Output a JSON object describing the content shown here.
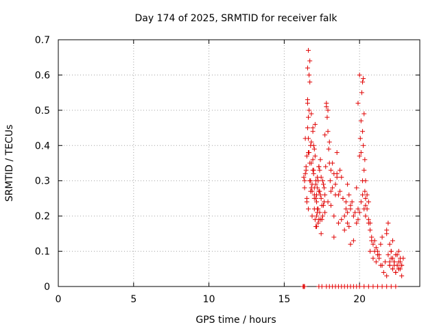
{
  "chart_data": {
    "type": "scatter",
    "title": "Day 174 of 2025, SRMTID for receiver falk",
    "xlabel": "GPS time / hours",
    "ylabel": "SRMTID / TECUs",
    "xlim": [
      0,
      24
    ],
    "ylim": [
      0,
      0.7
    ],
    "xticks": [
      0,
      5,
      10,
      15,
      20
    ],
    "yticks": [
      0,
      0.1,
      0.2,
      0.3,
      0.4,
      0.5,
      0.6,
      0.7
    ],
    "xtick_labels": [
      "0",
      "5",
      "10",
      "15",
      "20"
    ],
    "ytick_labels": [
      "0",
      "0.1",
      "0.2",
      "0.3",
      "0.4",
      "0.5",
      "0.6",
      "0.7"
    ],
    "grid": true,
    "marker": "+",
    "color": "#e00000",
    "series": [
      {
        "name": "SRMTID",
        "x": [
          16.3,
          16.35,
          16.4,
          16.45,
          16.5,
          16.55,
          16.6,
          16.6,
          16.65,
          16.7,
          16.75,
          16.8,
          16.85,
          16.9,
          16.95,
          17.0,
          17.05,
          17.1,
          17.15,
          17.2,
          17.25,
          17.3,
          17.35,
          17.4,
          17.45,
          17.5,
          17.55,
          17.6,
          17.65,
          17.7,
          16.35,
          16.45,
          16.55,
          16.65,
          16.75,
          16.85,
          16.95,
          17.05,
          17.15,
          17.25,
          17.35,
          17.45,
          17.55,
          17.65,
          17.75,
          16.4,
          16.5,
          16.6,
          16.7,
          16.8,
          16.9,
          17.0,
          17.1,
          17.2,
          17.3,
          17.4,
          16.5,
          16.6,
          16.7,
          16.8,
          16.9,
          17.0,
          17.1,
          17.2,
          17.3,
          16.55,
          16.55,
          16.6,
          16.65,
          16.7,
          16.75,
          16.8,
          16.85,
          16.9,
          16.95,
          17.0,
          17.0,
          17.05,
          17.1,
          17.15,
          17.15,
          17.2,
          17.25,
          17.3,
          17.35,
          17.4,
          17.45,
          17.5,
          17.6,
          17.7,
          17.8,
          17.9,
          18.0,
          18.1,
          18.2,
          18.3,
          18.4,
          18.5,
          17.8,
          17.85,
          17.9,
          17.95,
          18.0,
          18.05,
          18.1,
          17.7,
          17.9,
          18.1,
          18.3,
          18.5,
          18.7,
          18.9,
          19.1,
          18.2,
          18.3,
          18.4,
          18.5,
          18.6,
          18.7,
          18.8,
          18.9,
          19.0,
          19.1,
          19.2,
          19.3,
          19.4,
          18.6,
          18.8,
          19.0,
          19.2,
          19.4,
          19.6,
          19.8,
          19.2,
          19.3,
          19.4,
          19.5,
          19.6,
          19.7,
          19.8,
          19.9,
          19.9,
          20.0,
          20.05,
          20.1,
          20.15,
          20.2,
          20.25,
          20.3,
          20.35,
          20.4,
          20.1,
          20.2,
          20.25,
          20.3,
          20.35,
          20.4,
          19.9,
          20.0,
          20.1,
          20.2,
          20.3,
          20.4,
          20.5,
          20.6,
          20.7,
          20.0,
          20.2,
          20.4,
          20.6,
          20.8,
          20.5,
          20.6,
          20.7,
          20.8,
          20.9,
          21.0,
          21.1,
          21.2,
          21.3,
          21.4,
          21.5,
          20.7,
          20.9,
          21.1,
          21.3,
          21.5,
          21.7,
          21.0,
          21.2,
          21.4,
          21.6,
          21.8,
          22.0,
          21.8,
          21.9,
          22.0,
          22.1,
          22.2,
          22.3,
          22.4,
          22.5,
          22.6,
          22.7,
          22.8,
          21.9,
          22.0,
          22.1,
          22.2,
          22.3,
          22.4,
          22.5,
          22.6,
          22.7,
          22.8,
          22.0,
          22.1,
          22.2,
          22.3,
          22.4,
          22.5,
          22.6,
          22.7,
          22.8,
          21.8,
          22.2,
          22.6,
          22.9,
          16.25,
          16.3,
          16.35,
          17.3,
          17.5,
          17.8,
          18.0,
          18.2,
          18.4,
          18.6,
          18.8,
          19.0,
          19.2,
          19.4,
          19.6,
          19.8,
          20.0,
          20.3,
          20.6,
          20.9,
          21.2,
          21.5,
          21.8,
          22.1,
          22.4
        ],
        "y": [
          0.31,
          0.28,
          0.42,
          0.33,
          0.25,
          0.45,
          0.22,
          0.38,
          0.5,
          0.3,
          0.27,
          0.35,
          0.2,
          0.44,
          0.32,
          0.26,
          0.37,
          0.29,
          0.24,
          0.21,
          0.18,
          0.27,
          0.33,
          0.36,
          0.25,
          0.19,
          0.3,
          0.23,
          0.28,
          0.26,
          0.3,
          0.34,
          0.52,
          0.6,
          0.4,
          0.29,
          0.33,
          0.46,
          0.17,
          0.22,
          0.27,
          0.31,
          0.2,
          0.24,
          0.34,
          0.32,
          0.37,
          0.67,
          0.58,
          0.41,
          0.36,
          0.28,
          0.25,
          0.31,
          0.34,
          0.26,
          0.24,
          0.42,
          0.64,
          0.49,
          0.45,
          0.39,
          0.3,
          0.22,
          0.19,
          0.53,
          0.62,
          0.48,
          0.38,
          0.35,
          0.3,
          0.28,
          0.27,
          0.33,
          0.4,
          0.25,
          0.22,
          0.19,
          0.17,
          0.2,
          0.26,
          0.28,
          0.3,
          0.34,
          0.21,
          0.19,
          0.15,
          0.23,
          0.29,
          0.43,
          0.52,
          0.5,
          0.41,
          0.33,
          0.28,
          0.2,
          0.26,
          0.32,
          0.51,
          0.48,
          0.44,
          0.39,
          0.35,
          0.3,
          0.27,
          0.21,
          0.24,
          0.23,
          0.14,
          0.31,
          0.27,
          0.25,
          0.22,
          0.35,
          0.32,
          0.29,
          0.38,
          0.26,
          0.33,
          0.31,
          0.25,
          0.2,
          0.24,
          0.18,
          0.17,
          0.22,
          0.18,
          0.19,
          0.16,
          0.21,
          0.12,
          0.13,
          0.18,
          0.29,
          0.26,
          0.23,
          0.24,
          0.2,
          0.21,
          0.28,
          0.22,
          0.52,
          0.6,
          0.42,
          0.38,
          0.55,
          0.58,
          0.59,
          0.49,
          0.36,
          0.3,
          0.47,
          0.44,
          0.4,
          0.33,
          0.27,
          0.25,
          0.19,
          0.21,
          0.24,
          0.26,
          0.22,
          0.2,
          0.26,
          0.24,
          0.18,
          0.37,
          0.3,
          0.23,
          0.19,
          0.14,
          0.22,
          0.18,
          0.16,
          0.13,
          0.12,
          0.1,
          0.11,
          0.09,
          0.08,
          0.12,
          0.14,
          0.1,
          0.08,
          0.07,
          0.09,
          0.06,
          0.07,
          0.13,
          0.1,
          0.06,
          0.04,
          0.03,
          0.06,
          0.15,
          0.18,
          0.12,
          0.1,
          0.08,
          0.07,
          0.09,
          0.06,
          0.05,
          0.07,
          0.06,
          0.09,
          0.06,
          0.08,
          0.05,
          0.07,
          0.04,
          0.06,
          0.05,
          0.08,
          0.03,
          0.07,
          0.1,
          0.05,
          0.06,
          0.04,
          0.09,
          0.07,
          0.05,
          0.06,
          0.16,
          0.13,
          0.1,
          0.08,
          0,
          0,
          0,
          0,
          0,
          0,
          0,
          0,
          0,
          0,
          0,
          0,
          0,
          0,
          0,
          0,
          0,
          0,
          0,
          0,
          0,
          0,
          0,
          0,
          0
        ]
      }
    ]
  }
}
